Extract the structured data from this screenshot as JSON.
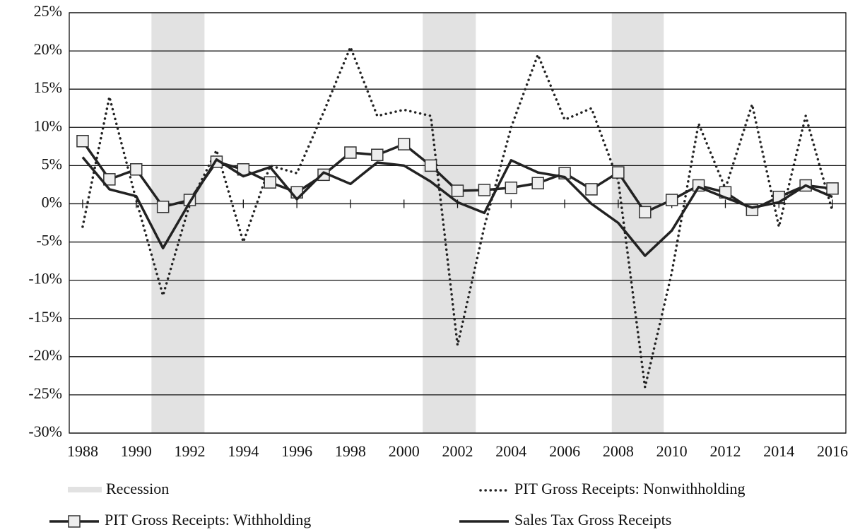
{
  "chart_data": {
    "type": "line",
    "x": [
      1988,
      1989,
      1990,
      1991,
      1992,
      1993,
      1994,
      1995,
      1996,
      1997,
      1998,
      1999,
      2000,
      2001,
      2002,
      2003,
      2004,
      2005,
      2006,
      2007,
      2008,
      2009,
      2010,
      2011,
      2012,
      2013,
      2014,
      2015,
      2016
    ],
    "series": [
      {
        "name": "PIT Gross Receipts:  Nonwithholding",
        "color": "#222222",
        "line_style": "dotted",
        "marker": "none",
        "values": [
          -3,
          14,
          0.5,
          -12,
          0,
          7,
          -5,
          5,
          4,
          12,
          20.5,
          11.5,
          12.3,
          11.5,
          -18.5,
          -3,
          10,
          19.5,
          11,
          12.5,
          3,
          -24,
          -9,
          10.5,
          2,
          13,
          -3,
          11.5,
          -1
        ]
      },
      {
        "name": "PIT Gross Receipts: Withholding",
        "color": "#222222",
        "line_style": "solid",
        "marker": "square",
        "values": [
          8.2,
          3.2,
          4.5,
          -0.4,
          0.5,
          5.5,
          4.5,
          2.8,
          1.5,
          3.8,
          6.7,
          6.4,
          7.8,
          5.0,
          1.7,
          1.8,
          2.1,
          2.7,
          4.0,
          1.9,
          4.1,
          -1.1,
          0.5,
          2.4,
          1.5,
          -0.8,
          0.9,
          2.4,
          2.0
        ]
      },
      {
        "name": "Sales Tax Gross Receipts",
        "color": "#222222",
        "line_style": "solid",
        "marker": "none",
        "values": [
          6.1,
          1.9,
          1.0,
          -5.8,
          0.2,
          5.8,
          3.6,
          4.8,
          0.6,
          4.1,
          2.6,
          5.4,
          5.0,
          2.9,
          0.2,
          -1.2,
          5.7,
          4.1,
          3.5,
          0,
          -2.5,
          -6.8,
          -3.5,
          2.2,
          0.8,
          -0.5,
          0.2,
          2.4,
          0.9
        ]
      }
    ],
    "recession": {
      "name": "Recession",
      "color": "#e2e2e2",
      "periods": [
        [
          1990.57,
          1992.55
        ],
        [
          2000.7,
          2002.68
        ],
        [
          2007.76,
          2009.7
        ]
      ]
    },
    "xlim": [
      1987.5,
      2016.5
    ],
    "xticks": [
      1988,
      1990,
      1992,
      1994,
      1996,
      1998,
      2000,
      2002,
      2004,
      2006,
      2008,
      2010,
      2012,
      2014,
      2016
    ],
    "ylim": [
      -30,
      25
    ],
    "yticks": [
      {
        "value": -30,
        "label": "-30%"
      },
      {
        "value": -25,
        "label": "-25%"
      },
      {
        "value": -20,
        "label": "-20%"
      },
      {
        "value": -15,
        "label": "-15%"
      },
      {
        "value": -10,
        "label": "-10%"
      },
      {
        "value": -5,
        "label": "-5%"
      },
      {
        "value": 0,
        "label": "0%"
      },
      {
        "value": 5,
        "label": "5%"
      },
      {
        "value": 10,
        "label": "10%"
      },
      {
        "value": 15,
        "label": "15%"
      },
      {
        "value": 20,
        "label": "20%"
      },
      {
        "value": 25,
        "label": "25%"
      }
    ],
    "grid": true
  }
}
